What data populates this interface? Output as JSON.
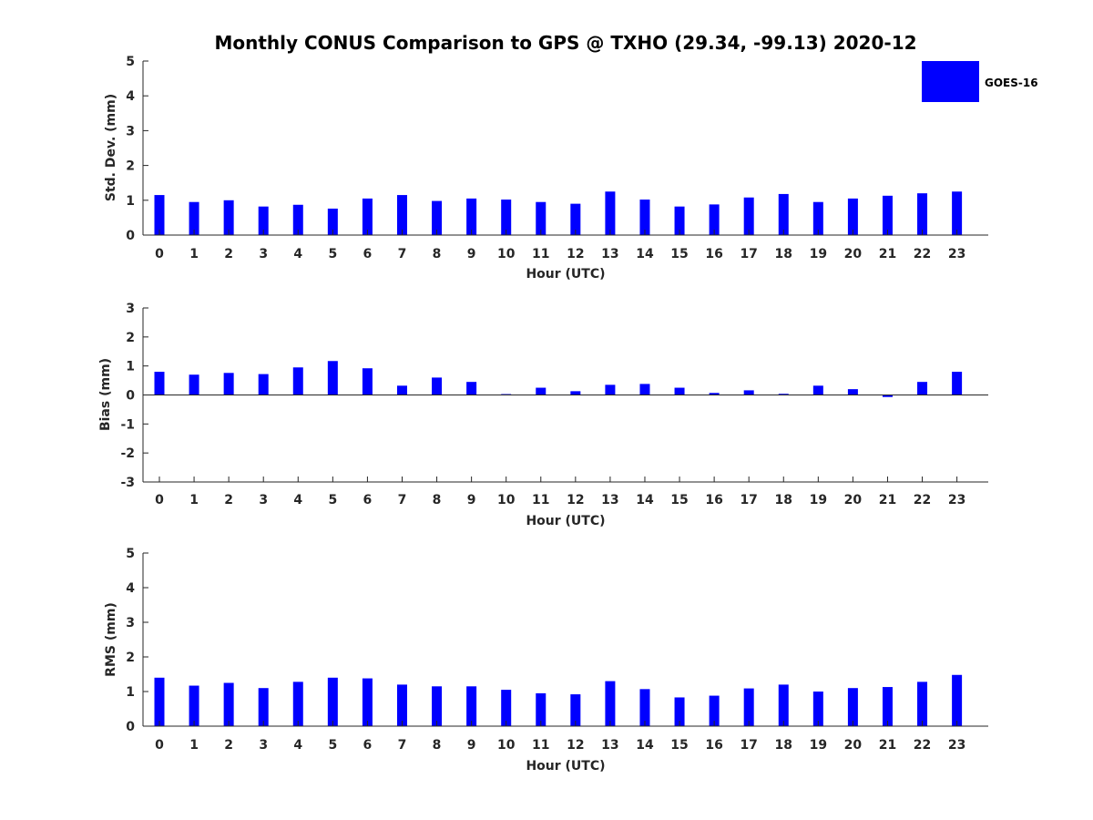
{
  "chart_data": [
    {
      "type": "bar",
      "title": "Monthly CONUS Comparison to GPS @ TXHO (29.34, -99.13) 2020-12",
      "xlabel": "Hour (UTC)",
      "ylabel": "Std. Dev. (mm)",
      "ylim": [
        0,
        5
      ],
      "yticks": [
        0,
        1,
        2,
        3,
        4,
        5
      ],
      "categories": [
        "0",
        "1",
        "2",
        "3",
        "4",
        "5",
        "6",
        "7",
        "8",
        "9",
        "10",
        "11",
        "12",
        "13",
        "14",
        "15",
        "16",
        "17",
        "18",
        "19",
        "20",
        "21",
        "22",
        "23"
      ],
      "series": [
        {
          "name": "GOES-16",
          "values": [
            1.15,
            0.95,
            1.0,
            0.82,
            0.87,
            0.76,
            1.05,
            1.15,
            0.98,
            1.05,
            1.02,
            0.95,
            0.9,
            1.25,
            1.02,
            0.82,
            0.88,
            1.08,
            1.18,
            0.95,
            1.05,
            1.13,
            1.2,
            1.25
          ]
        }
      ],
      "legend": {
        "position": "top-right",
        "entries": [
          "GOES-16"
        ]
      }
    },
    {
      "type": "bar",
      "xlabel": "Hour (UTC)",
      "ylabel": "Bias (mm)",
      "ylim": [
        -3,
        3
      ],
      "yticks": [
        -3,
        -2,
        -1,
        0,
        1,
        2,
        3
      ],
      "categories": [
        "0",
        "1",
        "2",
        "3",
        "4",
        "5",
        "6",
        "7",
        "8",
        "9",
        "10",
        "11",
        "12",
        "13",
        "14",
        "15",
        "16",
        "17",
        "18",
        "19",
        "20",
        "21",
        "22",
        "23"
      ],
      "series": [
        {
          "name": "GOES-16",
          "values": [
            0.8,
            0.7,
            0.76,
            0.72,
            0.95,
            1.17,
            0.92,
            0.32,
            0.6,
            0.45,
            0.03,
            0.25,
            0.13,
            0.35,
            0.38,
            0.25,
            0.07,
            0.16,
            0.04,
            0.32,
            0.2,
            -0.07,
            0.45,
            0.8
          ]
        }
      ]
    },
    {
      "type": "bar",
      "xlabel": "Hour (UTC)",
      "ylabel": "RMS (mm)",
      "ylim": [
        0,
        5
      ],
      "yticks": [
        0,
        1,
        2,
        3,
        4,
        5
      ],
      "categories": [
        "0",
        "1",
        "2",
        "3",
        "4",
        "5",
        "6",
        "7",
        "8",
        "9",
        "10",
        "11",
        "12",
        "13",
        "14",
        "15",
        "16",
        "17",
        "18",
        "19",
        "20",
        "21",
        "22",
        "23"
      ],
      "series": [
        {
          "name": "GOES-16",
          "values": [
            1.4,
            1.17,
            1.25,
            1.1,
            1.28,
            1.4,
            1.38,
            1.2,
            1.15,
            1.15,
            1.05,
            0.95,
            0.92,
            1.3,
            1.07,
            0.83,
            0.88,
            1.09,
            1.2,
            1.0,
            1.1,
            1.13,
            1.28,
            1.48
          ]
        }
      ]
    }
  ],
  "colors": {
    "bar": "#0000ff",
    "axis": "#262626"
  }
}
